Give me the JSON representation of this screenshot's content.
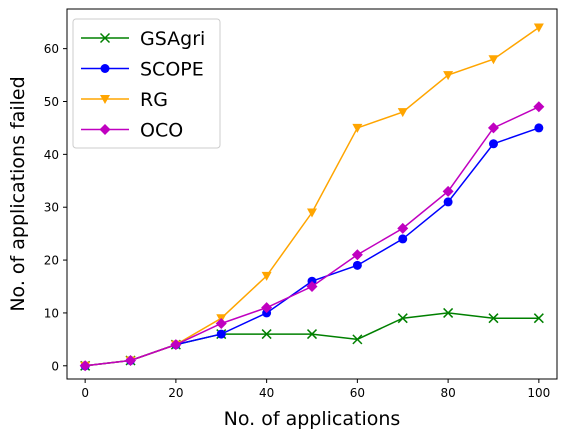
{
  "chart_data": {
    "type": "line",
    "title": "",
    "xlabel": "No. of applications",
    "ylabel": "No. of applications failed",
    "x": [
      0,
      10,
      20,
      30,
      40,
      50,
      60,
      70,
      80,
      90,
      100
    ],
    "xlim": [
      -4,
      104
    ],
    "ylim": [
      -2.5,
      67.5
    ],
    "xticks": [
      0,
      20,
      40,
      60,
      80,
      100
    ],
    "yticks": [
      0,
      10,
      20,
      30,
      40,
      50,
      60
    ],
    "grid": false,
    "legend_position": "top-left",
    "series": [
      {
        "name": "GSAgri",
        "color": "#008000",
        "marker": "x",
        "values": [
          0,
          1,
          4,
          6,
          6,
          6,
          5,
          9,
          10,
          9,
          9
        ]
      },
      {
        "name": "SCOPE",
        "color": "#0000ff",
        "marker": "circle",
        "values": [
          0,
          1,
          4,
          6,
          10,
          16,
          19,
          24,
          31,
          42,
          45
        ]
      },
      {
        "name": "RG",
        "color": "#ffa500",
        "marker": "triangle-down",
        "values": [
          0,
          1,
          4,
          9,
          17,
          29,
          45,
          48,
          55,
          58,
          64
        ]
      },
      {
        "name": "OCO",
        "color": "#c000c0",
        "marker": "diamond",
        "values": [
          0,
          1,
          4,
          8,
          11,
          15,
          21,
          26,
          33,
          45,
          49
        ]
      }
    ]
  }
}
